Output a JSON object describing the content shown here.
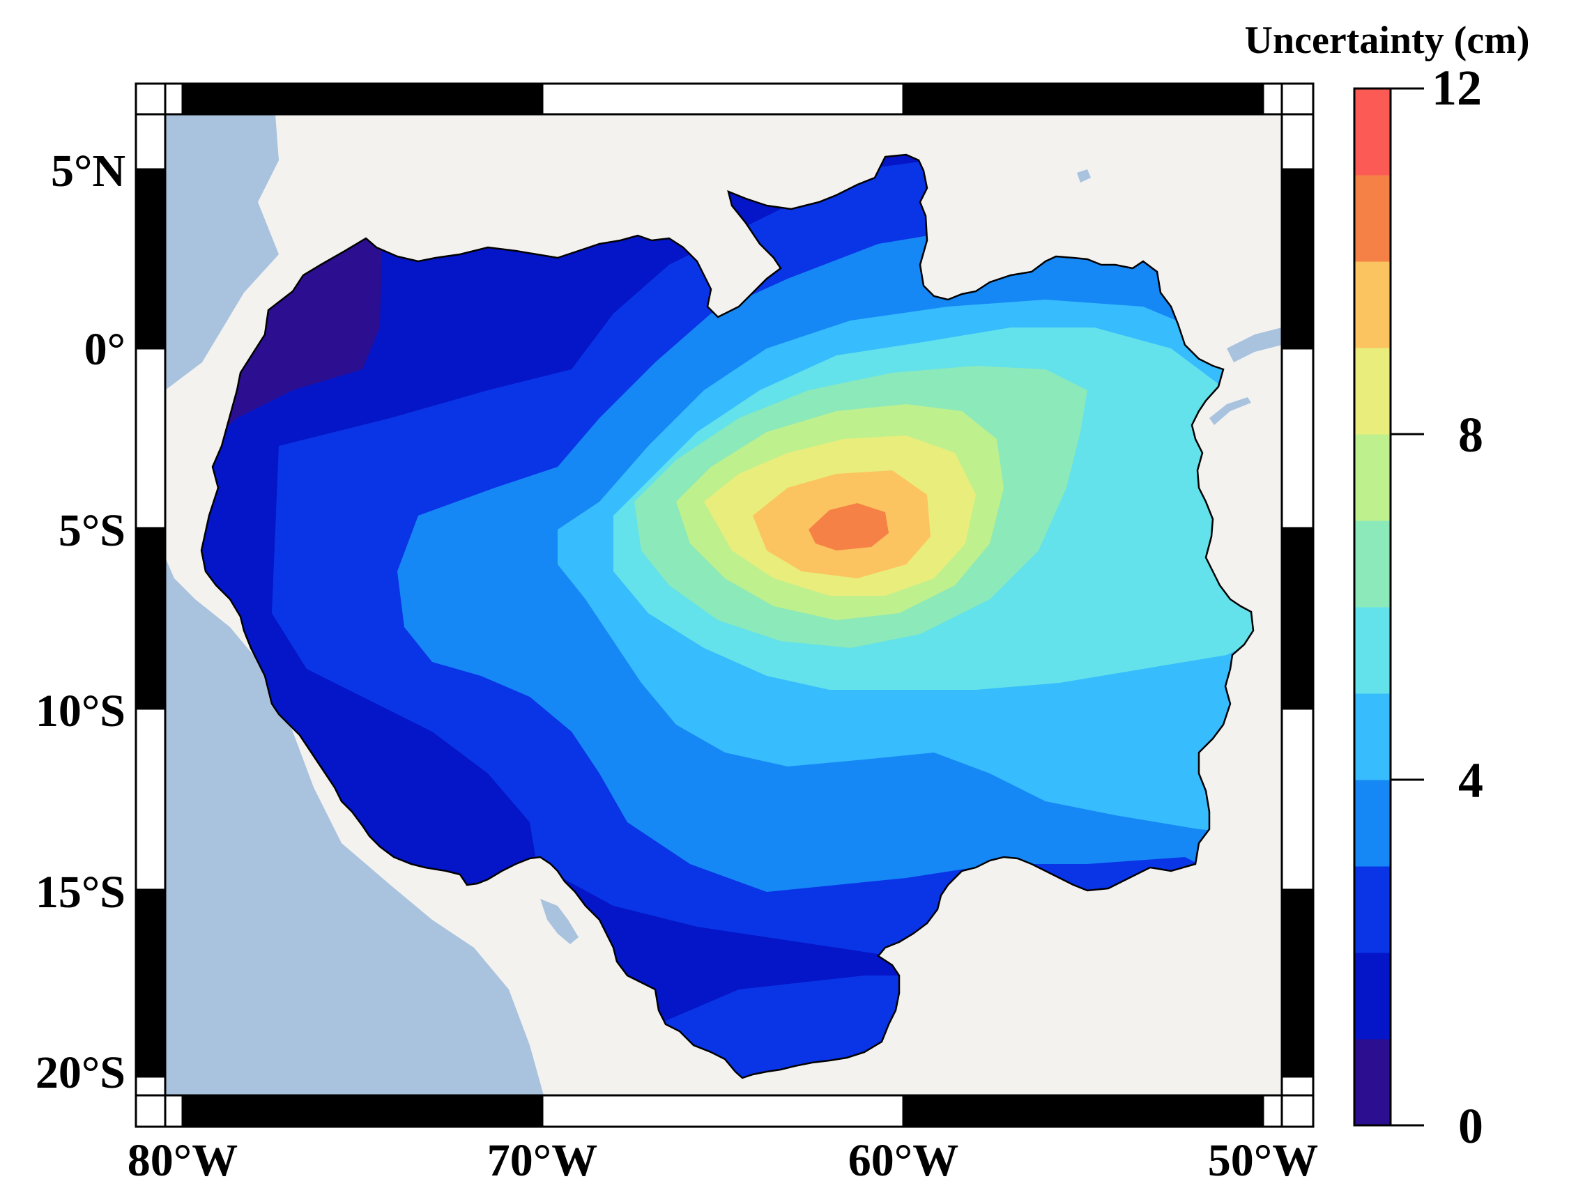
{
  "map": {
    "x_axis_labels": [
      "80°W",
      "70°W",
      "60°W",
      "50°W"
    ],
    "y_axis_labels": [
      "5°N",
      "0°",
      "5°S",
      "10°S",
      "15°S",
      "20°S"
    ],
    "colors": {
      "ocean": "#a9c3df",
      "land": "#f3f2ef",
      "basin_outline": "#000000",
      "frame": "#000000"
    }
  },
  "colorbar": {
    "title": "Uncertainty (cm)",
    "tick_labels": [
      "12",
      "8",
      "4",
      "0"
    ],
    "range": [
      0,
      12
    ],
    "levels": [
      0,
      1,
      2,
      3,
      4,
      5,
      6,
      7,
      8,
      9,
      10,
      11,
      12
    ],
    "colors": [
      "#2c0e91",
      "#0416c8",
      "#0a35e6",
      "#1688f6",
      "#37bcfd",
      "#63e2eb",
      "#8ce9b9",
      "#bff08e",
      "#e9ed7c",
      "#fbc460",
      "#f58146",
      "#fb5a55"
    ]
  },
  "uncertainty_peak": {
    "location": "about 62°W, 5°S",
    "max_value_range_cm": [
      10,
      11
    ]
  }
}
